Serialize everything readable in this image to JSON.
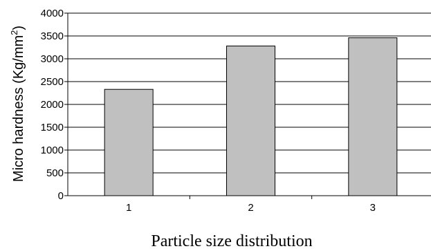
{
  "chart_data": {
    "type": "bar",
    "categories": [
      "1",
      "2",
      "3"
    ],
    "values": [
      2330,
      3280,
      3460
    ],
    "xlabel": "Particle size distribution",
    "ylabel_prefix": "Micro hardness (Kg/mm",
    "ylabel_sup": "2",
    "ylabel_suffix": ")",
    "ylim": [
      0,
      4000
    ],
    "yticks": [
      "0",
      "500",
      "1000",
      "1500",
      "2000",
      "2500",
      "3000",
      "3500",
      "4000"
    ],
    "grid": true,
    "legend": "none",
    "bar_color": "#c0c0c0",
    "bar_edge_color": "#000000",
    "grid_color": "#000000"
  }
}
